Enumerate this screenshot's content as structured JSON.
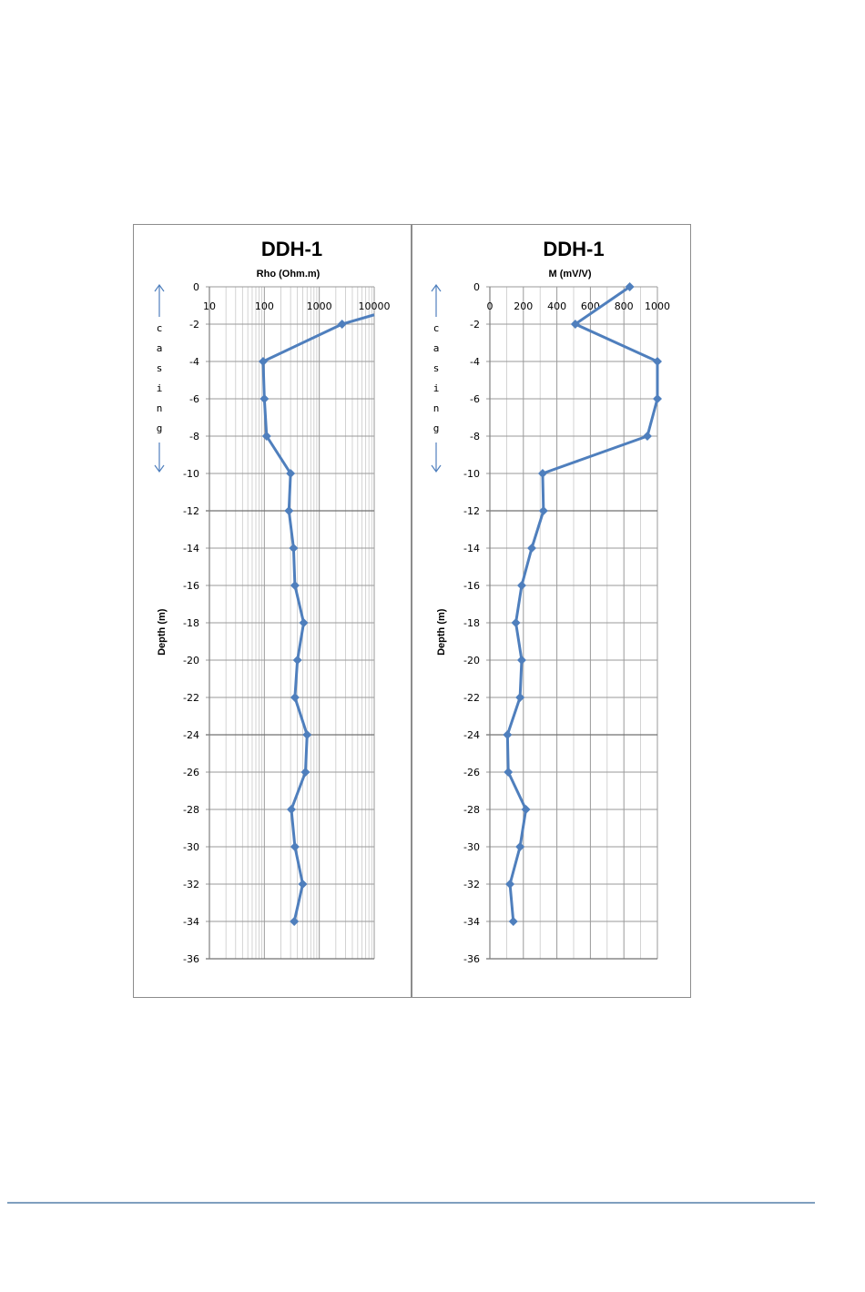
{
  "colors": {
    "series": "#4f7fbd",
    "grid_major": "#9a9a9a",
    "grid_minor": "#c8c8c8",
    "axis": "#808080",
    "footer_rule": "#7f9fbf"
  },
  "chart_data": [
    {
      "type": "line",
      "title": "DDH-1",
      "xlabel": "Rho (Ohm.m)",
      "ylabel": "Depth (m)",
      "x_scale": "log",
      "xlim": [
        10,
        10000
      ],
      "x_ticks": [
        "10",
        "100",
        "1000",
        "10000"
      ],
      "ylim": [
        -36,
        0
      ],
      "y_ticks": [
        "0",
        "-2",
        "-4",
        "-6",
        "-8",
        "-10",
        "-12",
        "-14",
        "-16",
        "-18",
        "-20",
        "-22",
        "-24",
        "-26",
        "-28",
        "-30",
        "-32",
        "-34",
        "-36"
      ],
      "grid": true,
      "annotation": {
        "text": "casing",
        "depth_from": 0,
        "depth_to": -10
      },
      "series": [
        {
          "x": [
            10000,
            2600,
            95,
            100,
            110,
            300,
            280,
            340,
            360,
            520,
            400,
            360,
            600,
            560,
            310,
            360,
            500,
            350
          ],
          "y": [
            -1.5,
            -2,
            -4,
            -6,
            -8,
            -10,
            -12,
            -14,
            -16,
            -18,
            -20,
            -22,
            -24,
            -26,
            -28,
            -30,
            -32,
            -34
          ]
        }
      ]
    },
    {
      "type": "line",
      "title": "DDH-1",
      "xlabel": "M (mV/V)",
      "ylabel": "Depth (m)",
      "xlim": [
        0,
        1000
      ],
      "x_ticks": [
        "0",
        "200",
        "400",
        "600",
        "800",
        "1000"
      ],
      "ylim": [
        -36,
        0
      ],
      "y_ticks": [
        "0",
        "-2",
        "-4",
        "-6",
        "-8",
        "-10",
        "-12",
        "-14",
        "-16",
        "-18",
        "-20",
        "-22",
        "-24",
        "-26",
        "-28",
        "-30",
        "-32",
        "-34",
        "-36"
      ],
      "grid": true,
      "annotation": {
        "text": "casing",
        "depth_from": 0,
        "depth_to": -10
      },
      "series": [
        {
          "x": [
            835,
            510,
            1000,
            1005,
            940,
            315,
            320,
            250,
            190,
            155,
            190,
            180,
            105,
            110,
            215,
            180,
            120,
            140
          ],
          "y": [
            0,
            -2,
            -4,
            -6,
            -8,
            -10,
            -12,
            -14,
            -16,
            -18,
            -20,
            -22,
            -24,
            -26,
            -28,
            -30,
            -32,
            -34
          ]
        }
      ]
    }
  ]
}
